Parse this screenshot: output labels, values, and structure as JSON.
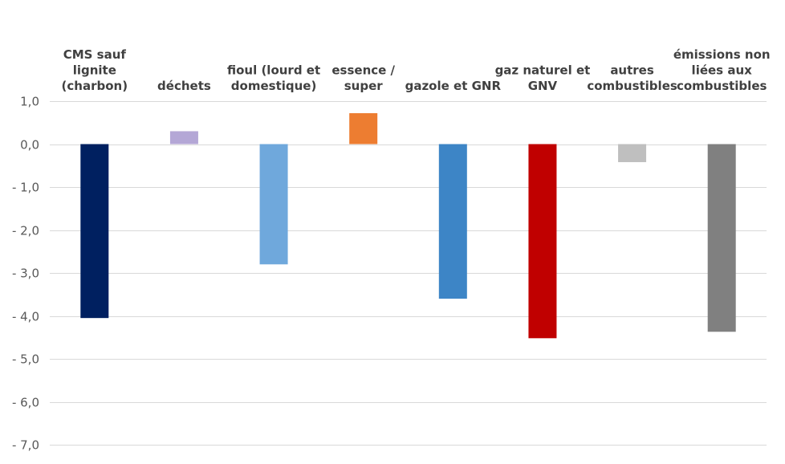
{
  "chart_data": {
    "type": "bar",
    "categories": [
      [
        "CMS sauf",
        "lignite",
        "(charbon)"
      ],
      [
        "déchets"
      ],
      [
        "fioul (lourd et",
        "domestique)"
      ],
      [
        "essence /",
        "super"
      ],
      [
        "gazole et GNR"
      ],
      [
        "gaz naturel et",
        "GNV"
      ],
      [
        "autres",
        "combustibles"
      ],
      [
        "émissions non",
        "liées aux",
        "combustibles"
      ]
    ],
    "values": [
      -4.05,
      0.3,
      -2.8,
      0.72,
      -3.6,
      -4.52,
      -0.42,
      -4.37
    ],
    "colors": [
      "#002060",
      "#B4A7D6",
      "#6FA8DC",
      "#ED7D31",
      "#3D85C6",
      "#C00000",
      "#BFBFBF",
      "#808080"
    ],
    "ylim": [
      -7,
      1
    ],
    "yticks": [
      "1,0",
      "0,0",
      "- 1,0",
      "- 2,0",
      "- 3,0",
      "- 4,0",
      "- 5,0",
      "- 6,0",
      "- 7,0"
    ],
    "ytick_values": [
      1,
      0,
      -1,
      -2,
      -3,
      -4,
      -5,
      -6,
      -7
    ],
    "grid": true,
    "title": "",
    "xlabel": "",
    "ylabel": ""
  }
}
